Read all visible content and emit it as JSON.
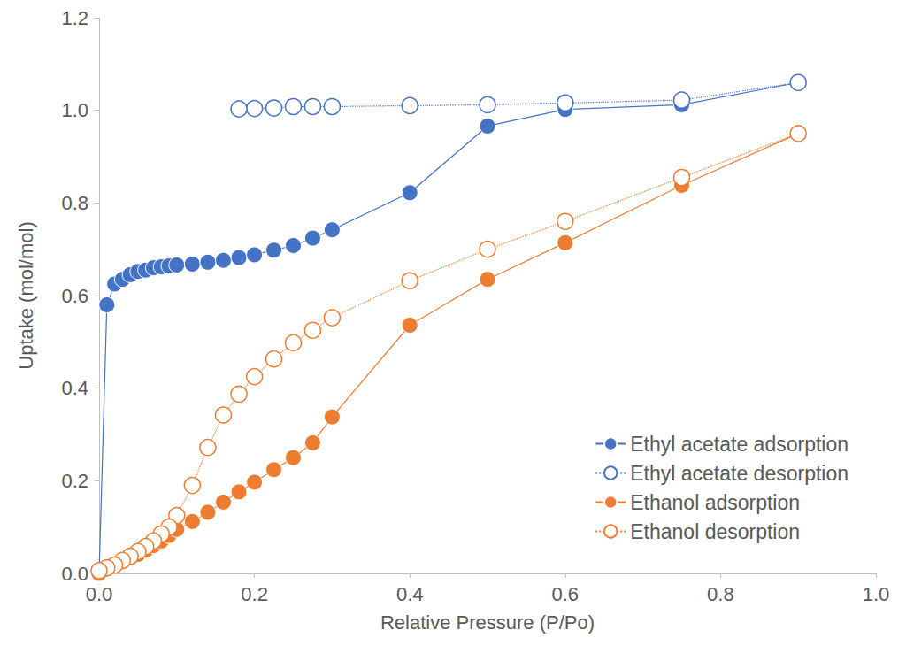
{
  "chart_data": {
    "type": "line",
    "x_label": "Relative Pressure (P/Po)",
    "y_label": "Uptake (mol/mol)",
    "xlim": [
      0,
      1.0
    ],
    "xticks": [
      {
        "value": 0,
        "label": "0.0"
      },
      {
        "value": 0.2,
        "label": "0.2"
      },
      {
        "value": 0.4,
        "label": "0.4"
      },
      {
        "value": 0.6,
        "label": "0.6"
      },
      {
        "value": 0.8,
        "label": "0.8"
      },
      {
        "value": 1.0,
        "label": "1.0"
      }
    ],
    "ylim": [
      0,
      1.2
    ],
    "yticks": [
      {
        "value": 0,
        "label": "0.0"
      },
      {
        "value": 0.2,
        "label": "0.2"
      },
      {
        "value": 0.4,
        "label": "0.4"
      },
      {
        "value": 0.6,
        "label": "0.6"
      },
      {
        "value": 0.8,
        "label": "0.8"
      },
      {
        "value": 1.0,
        "label": "1.0"
      },
      {
        "value": 1.2,
        "label": "1.2"
      }
    ],
    "grid": false,
    "legend": "lower right",
    "series": [
      {
        "name": "Ethyl acetate adsorption",
        "color": "#4472c4",
        "marker": "filled",
        "line_style": "solid",
        "x": [
          0,
          0.01,
          0.02,
          0.03,
          0.04,
          0.05,
          0.06,
          0.07,
          0.08,
          0.09,
          0.1,
          0.12,
          0.14,
          0.16,
          0.18,
          0.2,
          0.225,
          0.25,
          0.275,
          0.3,
          0.4,
          0.5,
          0.6,
          0.75,
          0.9
        ],
        "values": [
          0,
          0.58,
          0.625,
          0.635,
          0.645,
          0.652,
          0.655,
          0.66,
          0.662,
          0.664,
          0.666,
          0.668,
          0.672,
          0.676,
          0.682,
          0.688,
          0.698,
          0.708,
          0.724,
          0.742,
          0.822,
          0.966,
          1.002,
          1.012,
          1.06
        ]
      },
      {
        "name": "Ethyl acetate desorption",
        "color": "#4472c4",
        "marker": "open",
        "line_style": "dotted",
        "x": [
          0.9,
          0.75,
          0.6,
          0.5,
          0.4,
          0.3,
          0.275,
          0.25,
          0.225,
          0.2,
          0.18
        ],
        "values": [
          1.06,
          1.022,
          1.016,
          1.012,
          1.01,
          1.008,
          1.008,
          1.008,
          1.005,
          1.004,
          1.003
        ]
      },
      {
        "name": "Ethanol adsorption",
        "color": "#ed7d31",
        "marker": "filled",
        "line_style": "solid",
        "x": [
          0,
          0.01,
          0.02,
          0.03,
          0.04,
          0.05,
          0.06,
          0.07,
          0.08,
          0.09,
          0.1,
          0.12,
          0.14,
          0.16,
          0.18,
          0.2,
          0.225,
          0.25,
          0.275,
          0.3,
          0.4,
          0.5,
          0.6,
          0.75,
          0.9
        ],
        "values": [
          0,
          0.01,
          0.017,
          0.025,
          0.033,
          0.041,
          0.05,
          0.06,
          0.07,
          0.082,
          0.095,
          0.112,
          0.132,
          0.154,
          0.176,
          0.197,
          0.224,
          0.25,
          0.282,
          0.338,
          0.536,
          0.635,
          0.714,
          0.838,
          0.95
        ]
      },
      {
        "name": "Ethanol desorption",
        "color": "#ed7d31",
        "marker": "open",
        "line_style": "dotted",
        "x": [
          0.9,
          0.75,
          0.6,
          0.5,
          0.4,
          0.3,
          0.275,
          0.25,
          0.225,
          0.2,
          0.18,
          0.16,
          0.14,
          0.12,
          0.1,
          0.09,
          0.08,
          0.07,
          0.06,
          0.05,
          0.04,
          0.03,
          0.02,
          0.01,
          0
        ],
        "values": [
          0.95,
          0.855,
          0.76,
          0.7,
          0.632,
          0.552,
          0.525,
          0.498,
          0.463,
          0.425,
          0.387,
          0.342,
          0.272,
          0.19,
          0.125,
          0.1,
          0.085,
          0.07,
          0.058,
          0.047,
          0.037,
          0.028,
          0.018,
          0.012,
          0.006
        ]
      }
    ]
  }
}
